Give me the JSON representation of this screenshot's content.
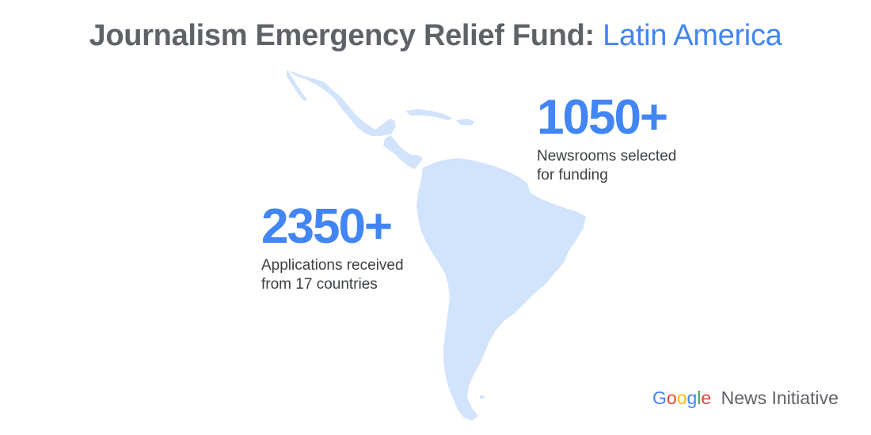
{
  "title": {
    "main": "Journalism Emergency Relief Fund:",
    "accent": "Latin America"
  },
  "stats": [
    {
      "value": "1050+",
      "caption_line1": "Newsrooms selected",
      "caption_line2": "for funding"
    },
    {
      "value": "2350+",
      "caption_line1": "Applications received",
      "caption_line2": "from 17 countries"
    }
  ],
  "logo": {
    "google_letters": [
      "G",
      "o",
      "o",
      "g",
      "l",
      "e"
    ],
    "google_colors": [
      "#4285f4",
      "#ea4335",
      "#fbbc05",
      "#4285f4",
      "#34a853",
      "#ea4335"
    ],
    "rest": "News Initiative"
  },
  "colors": {
    "title_gray": "#5f6368",
    "accent_blue": "#4285f4",
    "map_fill": "#d2e3fc",
    "caption_text": "#3c4043"
  }
}
